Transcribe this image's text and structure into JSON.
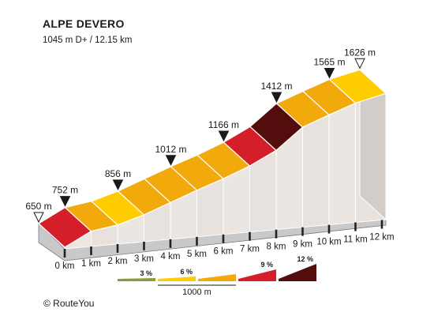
{
  "header": {
    "title": "ALPE DEVERO",
    "subtitle": "1045 m D+ / 12.15 km"
  },
  "footer": {
    "copyright": "© RouteYou"
  },
  "chart_data": {
    "type": "area",
    "title": "ALPE DEVERO",
    "subtitle": "1045 m D+ / 12.15 km",
    "x_unit": "km",
    "x_ticks": [
      0,
      1,
      2,
      3,
      4,
      5,
      6,
      7,
      8,
      9,
      10,
      11,
      12
    ],
    "x_tick_labels": [
      "0 km",
      "1 km",
      "2 km",
      "3 km",
      "4 km",
      "5 km",
      "6 km",
      "7 km",
      "8 km",
      "9 km",
      "10 km",
      "11 km",
      "12 km"
    ],
    "x_range": [
      0,
      12.15
    ],
    "elevation_profile": {
      "km": [
        0,
        1,
        2,
        3,
        4,
        5,
        6,
        7,
        8,
        9,
        10,
        11,
        12.15
      ],
      "elevation_m": [
        650,
        752,
        792,
        856,
        934,
        1012,
        1085,
        1166,
        1265,
        1412,
        1490,
        1565,
        1626
      ]
    },
    "segment_colors": [
      "#d41f2b",
      "#f1a90b",
      "#ffcc00",
      "#f1a90b",
      "#f1a90b",
      "#f1a90b",
      "#f1a90b",
      "#d41f2b",
      "#540d0d",
      "#f1a90b",
      "#f1a90b",
      "#ffcc00"
    ],
    "markers": [
      {
        "km": 0,
        "elevation": 650,
        "label": "650 m",
        "type": "start"
      },
      {
        "km": 1,
        "elevation": 752,
        "label": "752 m",
        "type": "point"
      },
      {
        "km": 3,
        "elevation": 856,
        "label": "856 m",
        "type": "point"
      },
      {
        "km": 5,
        "elevation": 1012,
        "label": "1012 m",
        "type": "point"
      },
      {
        "km": 7,
        "elevation": 1166,
        "label": "1166 m",
        "type": "point"
      },
      {
        "km": 9,
        "elevation": 1412,
        "label": "1412 m",
        "type": "point"
      },
      {
        "km": 11,
        "elevation": 1565,
        "label": "1565 m",
        "type": "point"
      },
      {
        "km": 12.15,
        "elevation": 1626,
        "label": "1626 m",
        "type": "end"
      }
    ],
    "legend": {
      "scale_label": "1000 m",
      "items": [
        {
          "label": "3 %",
          "color": "#8c9a3a"
        },
        {
          "label": "6 %",
          "color": "#ffcc00"
        },
        {
          "label": "",
          "color": "#f1a90b"
        },
        {
          "label": "9 %",
          "color": "#d41f2b"
        },
        {
          "label": "12 %",
          "color": "#540d0d"
        }
      ]
    }
  }
}
